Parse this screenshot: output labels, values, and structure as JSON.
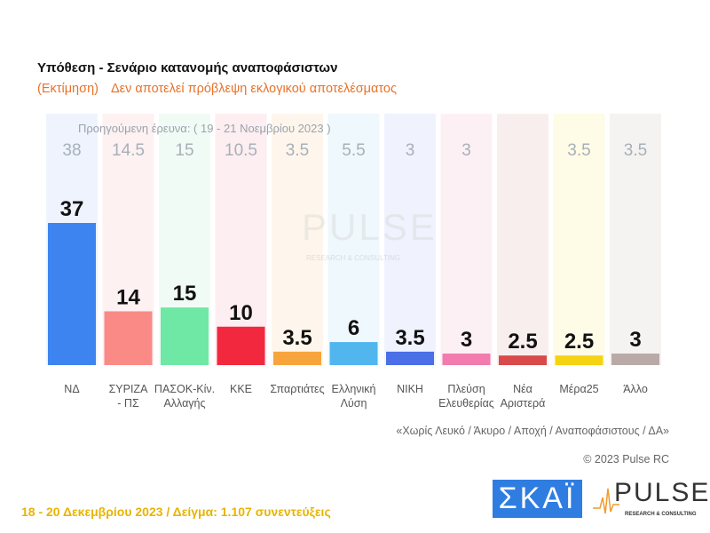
{
  "header": {
    "title": "Υπόθεση - Σενάριο κατανομής αναποφάσιστων",
    "estimate_tag": "(Εκτίμηση)",
    "disclaimer": "Δεν αποτελεί πρόβλεψη εκλογικού αποτελέσματος"
  },
  "chart_data": {
    "type": "bar",
    "previous_label": "Προηγούμενη έρευνα:  ( 19 - 21 Νοεμβρίου 2023 )",
    "categories": [
      "ΝΔ",
      "ΣΥΡΙΖΑ - ΠΣ",
      "ΠΑΣΟΚ-Κίν. Αλλαγής",
      "ΚΚΕ",
      "Σπαρτιάτες",
      "Ελληνική Λύση",
      "ΝΙΚΗ",
      "Πλεύση Ελευθερίας",
      "Νέα Αριστερά",
      "Μέρα25",
      "Άλλο"
    ],
    "category_lines": [
      [
        "ΝΔ"
      ],
      [
        "ΣΥΡΙΖΑ",
        "- ΠΣ"
      ],
      [
        "ΠΑΣΟΚ-Κίν.",
        "Αλλαγής"
      ],
      [
        "ΚΚΕ"
      ],
      [
        "Σπαρτιάτες"
      ],
      [
        "Ελληνική",
        "Λύση"
      ],
      [
        "ΝΙΚΗ"
      ],
      [
        "Πλεύση",
        "Ελευθερίας"
      ],
      [
        "Νέα",
        "Αριστερά"
      ],
      [
        "Μέρα25"
      ],
      [
        "Άλλο"
      ]
    ],
    "values": [
      37,
      14,
      15,
      10,
      3.5,
      6,
      3.5,
      3,
      2.5,
      2.5,
      3
    ],
    "value_labels": [
      "37",
      "14",
      "15",
      "10",
      "3.5",
      "6",
      "3.5",
      "3",
      "2.5",
      "2.5",
      "3"
    ],
    "previous_values": [
      "38",
      "14.5",
      "15",
      "10.5",
      "3.5",
      "5.5",
      "3",
      "3",
      "",
      "3.5",
      "3.5"
    ],
    "colors": [
      "#3d84f0",
      "#f98a86",
      "#6ee8a4",
      "#f2283e",
      "#f8a43c",
      "#52b6ee",
      "#4a6fe6",
      "#f27cae",
      "#d94a4a",
      "#f6d312",
      "#b9aaa8"
    ],
    "column_tints": [
      "#eef3fd",
      "#fdf1f2",
      "#f1fbf5",
      "#fdeef1",
      "#fef6ec",
      "#eef8fd",
      "#f0f3fd",
      "#fdf0f5",
      "#f9eeee",
      "#fefbe6",
      "#f5f2f2"
    ],
    "ylim": [
      0,
      40
    ]
  },
  "notes": {
    "exclusion": "«Χωρίς Λευκό / Άκυρο / Αποχή / Αναποφάσιστους / ΔΑ»",
    "copyright": "© 2023 Pulse RC"
  },
  "footer": {
    "text": "18 - 20  Δεκεμβρίου  2023  /  Δείγμα:  1.107 συνεντεύξεις"
  },
  "logos": {
    "skai": "ΣΚΑΪ",
    "pulse": "PULSE",
    "pulse_sub": "RESEARCH & CONSULTING"
  }
}
